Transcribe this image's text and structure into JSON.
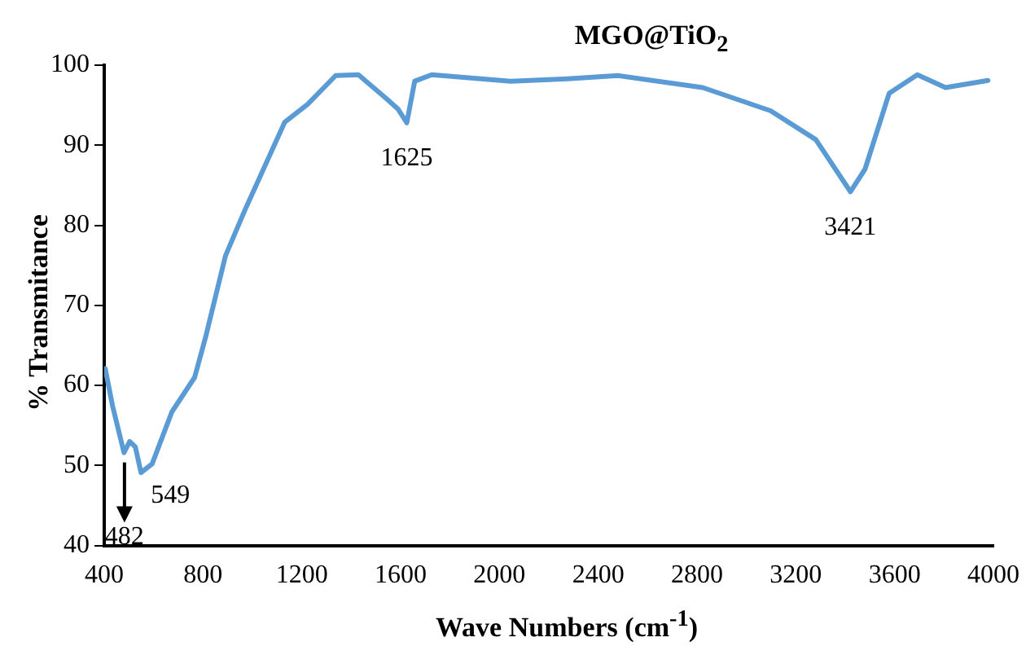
{
  "chart_data": {
    "type": "line",
    "title": "MGO@TiO$_{2}$",
    "xlabel": "Wave Numbers (cm$^{-1}$)",
    "ylabel": "% Transmitance",
    "x": [
      404,
      434,
      480,
      503,
      526,
      549,
      594,
      674,
      766,
      811,
      891,
      971,
      1131,
      1223,
      1337,
      1429,
      1543,
      1590,
      1625,
      1657,
      1726,
      2046,
      2275,
      2480,
      2823,
      3098,
      3281,
      3421,
      3480,
      3578,
      3692,
      3806,
      3978
    ],
    "series": [
      {
        "color": "#5b9bd5",
        "values": [
          62.1,
          57.4,
          51.6,
          53,
          52.3,
          49.1,
          50.2,
          56.7,
          61,
          66.1,
          76.2,
          82,
          92.9,
          95.1,
          98.7,
          98.8,
          95.8,
          94.5,
          92.8,
          98,
          98.8,
          98,
          98.3,
          98.7,
          97.2,
          94.3,
          90.7,
          84.2,
          87,
          96.5,
          98.8,
          97.2,
          98.1
        ]
      }
    ],
    "annotations": [
      {
        "text": "482",
        "x": 482,
        "y": 51.6
      },
      {
        "text": "549",
        "x": 549,
        "y": 49.1
      },
      {
        "text": "1625",
        "x": 1625,
        "y": 92.8
      },
      {
        "text": "3421",
        "x": 3421,
        "y": 84.2
      }
    ],
    "xlim": [
      400,
      4000
    ],
    "xticks": [
      400,
      800,
      1200,
      1600,
      2000,
      2400,
      2800,
      3200,
      3600,
      4000
    ],
    "ylim": [
      40,
      100
    ],
    "yticks": [
      40,
      50,
      60,
      70,
      80,
      90,
      100
    ],
    "grid": false,
    "legend": false,
    "marker": "none",
    "line_style": "solid"
  }
}
